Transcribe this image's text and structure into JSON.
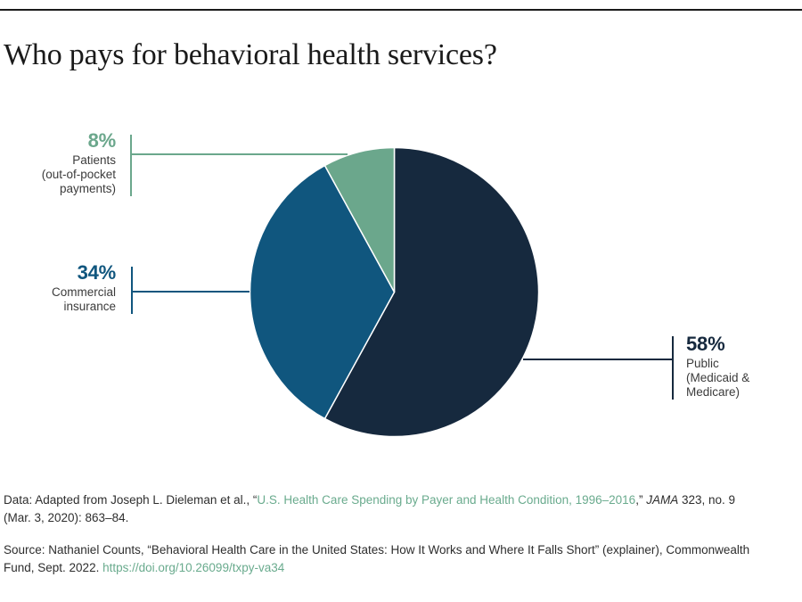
{
  "page": {
    "title": "Who pays for behavioral health services?"
  },
  "chart_data": {
    "type": "pie",
    "title": "Who pays for behavioral health services?",
    "start_angle_deg": 0,
    "direction": "clockwise",
    "legend_position": "callout-labels",
    "slices": [
      {
        "label": "Public (Medicaid & Medicare)",
        "value": 58,
        "pct_label": "58%",
        "sublabel": "Public\n(Medicaid &\nMedicare)",
        "color": "#16293e"
      },
      {
        "label": "Commercial insurance",
        "value": 34,
        "pct_label": "34%",
        "sublabel": "Commercial\ninsurance",
        "color": "#10567e"
      },
      {
        "label": "Patients (out-of-pocket payments)",
        "value": 8,
        "pct_label": "8%",
        "sublabel": "Patients\n(out-of-pocket\npayments)",
        "color": "#6ba78c"
      }
    ]
  },
  "footer": {
    "data_note": {
      "pre": "Data: Adapted from Joseph L. Dieleman et al., “",
      "link": "U.S. Health Care Spending by Payer and Health Condition, 1996–2016",
      "mid": ",” ",
      "journal": "JAMA",
      "post": " 323, no. 9\n(Mar. 3, 2020): 863–84."
    },
    "source_note": {
      "pre": "Source: Nathaniel Counts, “Behavioral Health Care in the United States: How It Works and Where It Falls Short” (explainer), Commonwealth\nFund, Sept. 2022. ",
      "link": "https://doi.org/10.26099/txpy-va34"
    },
    "link_color": "#6aab8e"
  },
  "colors": {
    "top_rule": "#1a1a1a",
    "title_text": "#1a1a1a",
    "sublabel_text": "#3b3b3b",
    "footer_text": "#2e2e2e"
  }
}
